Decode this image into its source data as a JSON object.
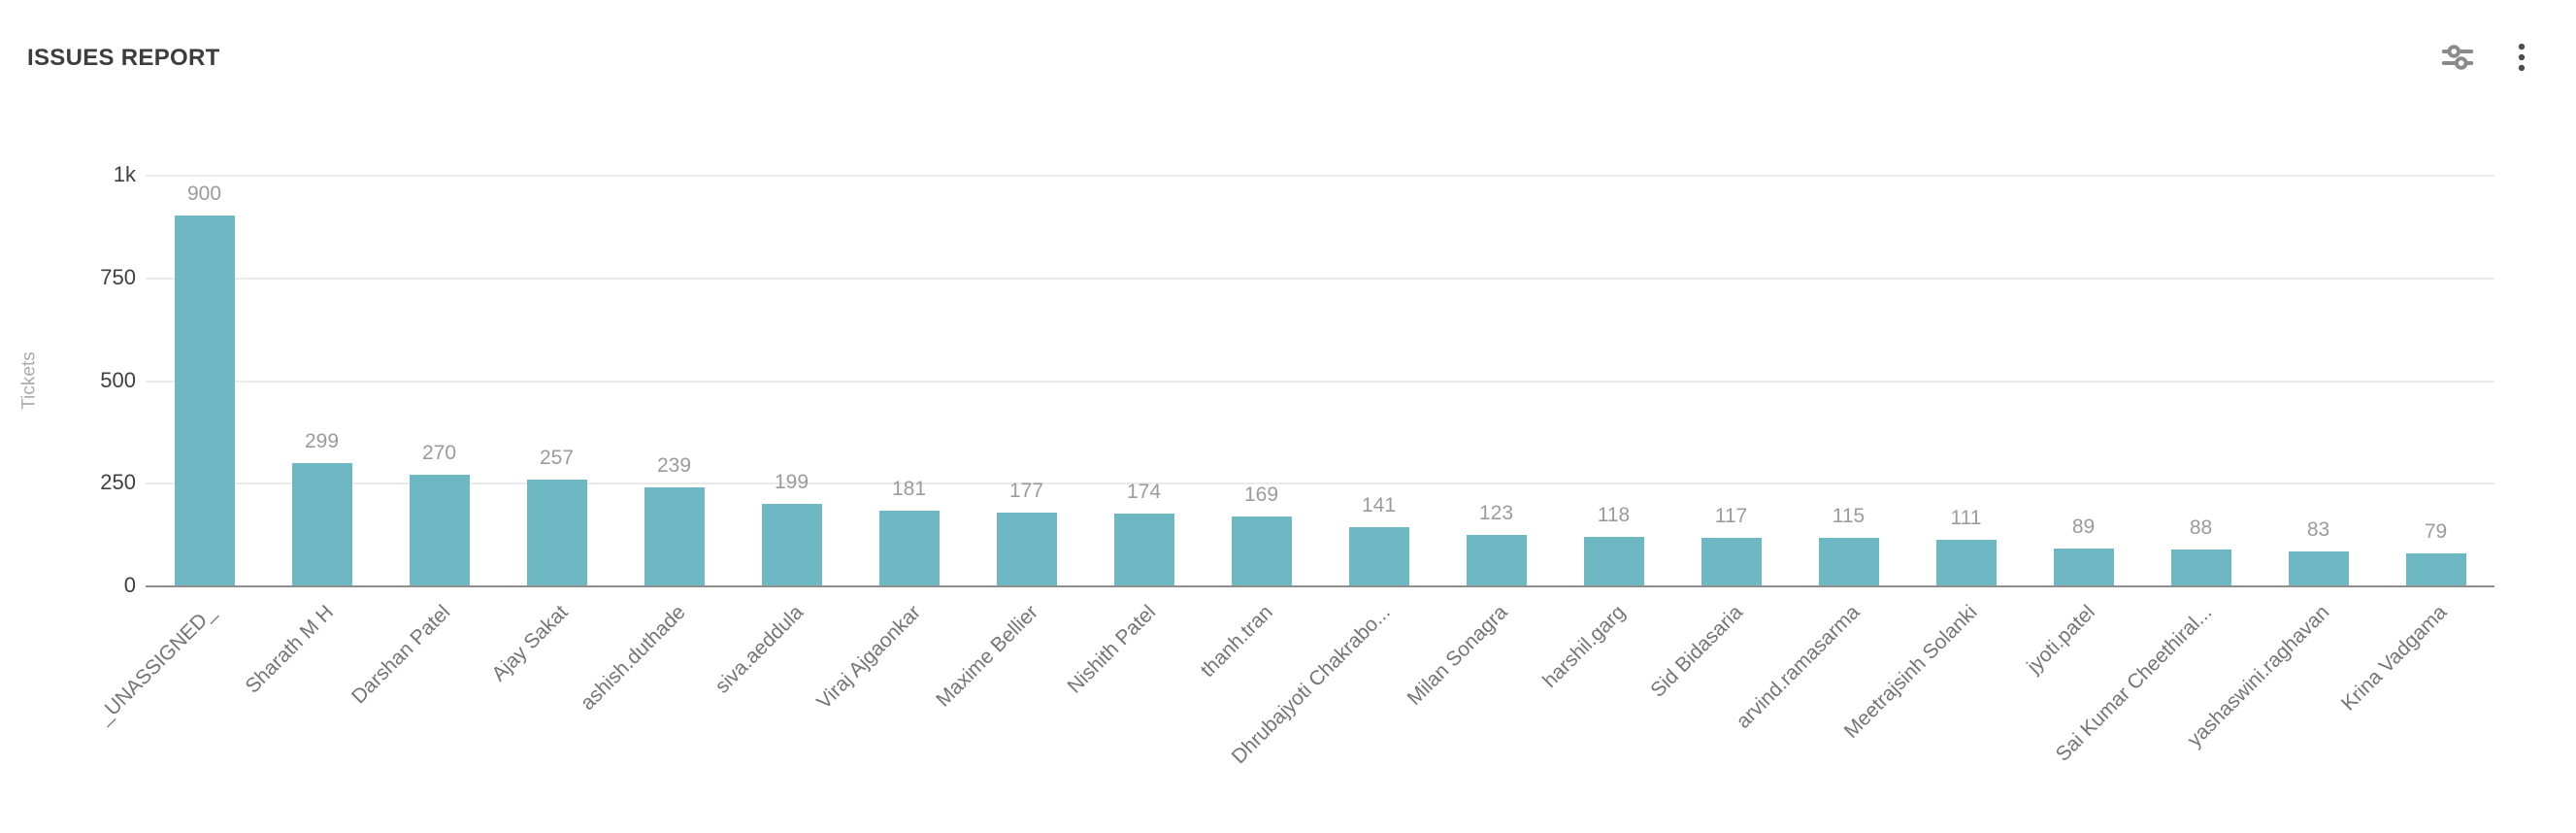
{
  "header": {
    "title": "ISSUES REPORT",
    "actions": [
      {
        "name": "chart-settings-button",
        "icon": "sliders-icon"
      },
      {
        "name": "more-options-button",
        "icon": "kebab-menu-icon"
      }
    ]
  },
  "colors": {
    "bar": "#6db8c2",
    "grid": "#ebebeb",
    "axis": "#8f8f8f",
    "title_text": "#3d3d3d",
    "value_label": "#9b9b9b",
    "category_label": "#757575",
    "y_tick_label": "#3f3f3f",
    "y_axis_title": "#ababab",
    "icon": "#8a8a8a"
  },
  "chart_data": {
    "type": "bar",
    "title": "ISSUES REPORT",
    "xlabel": "",
    "ylabel": "Tickets",
    "ylim": [
      0,
      1000
    ],
    "grid": true,
    "legend": false,
    "value_labels_shown": true,
    "category_label_rotation_deg": 45,
    "yticks": [
      {
        "value": 0,
        "label": "0"
      },
      {
        "value": 250,
        "label": "250"
      },
      {
        "value": 500,
        "label": "500"
      },
      {
        "value": 750,
        "label": "750"
      },
      {
        "value": 1000,
        "label": "1k"
      }
    ],
    "categories": [
      "_UNASSIGNED_",
      "Sharath M H",
      "Darshan Patel",
      "Ajay Sakat",
      "ashish.duthade",
      "siva.aeddula",
      "Viraj Ajgaonkar",
      "Maxime Bellier",
      "Nishith Patel",
      "thanh.tran",
      "Dhrubajyoti Chakrabo...",
      "Milan Sonagra",
      "harshil.garg",
      "Sid Bidasaria",
      "arvind.ramasarma",
      "Meetrajsinh Solanki",
      "jyoti.patel",
      "Sai Kumar Cheethiral...",
      "yashaswini.raghavan",
      "Krina Vadgama"
    ],
    "values": [
      900,
      299,
      270,
      257,
      239,
      199,
      181,
      177,
      174,
      169,
      141,
      123,
      118,
      117,
      115,
      111,
      89,
      88,
      83,
      79
    ]
  }
}
